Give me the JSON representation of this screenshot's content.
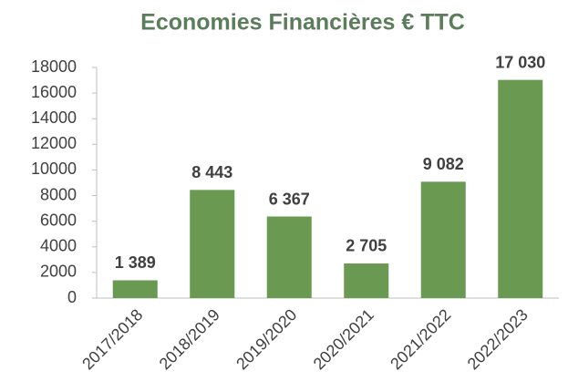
{
  "chart_data": {
    "type": "bar",
    "title": "Economies Financières € TTC",
    "categories": [
      "2017/2018",
      "2018/2019",
      "2019/2020",
      "2020/2021",
      "2021/2022",
      "2022/2023"
    ],
    "values": [
      1389,
      8443,
      6367,
      2705,
      9082,
      17030
    ],
    "value_labels": [
      "1 389",
      "8 443",
      "6 367",
      "2 705",
      "9 082",
      "17 030"
    ],
    "color": "#6a9a52",
    "ylim": [
      0,
      18000
    ],
    "yticks": [
      0,
      2000,
      4000,
      6000,
      8000,
      10000,
      12000,
      14000,
      16000,
      18000
    ],
    "grid": false
  }
}
